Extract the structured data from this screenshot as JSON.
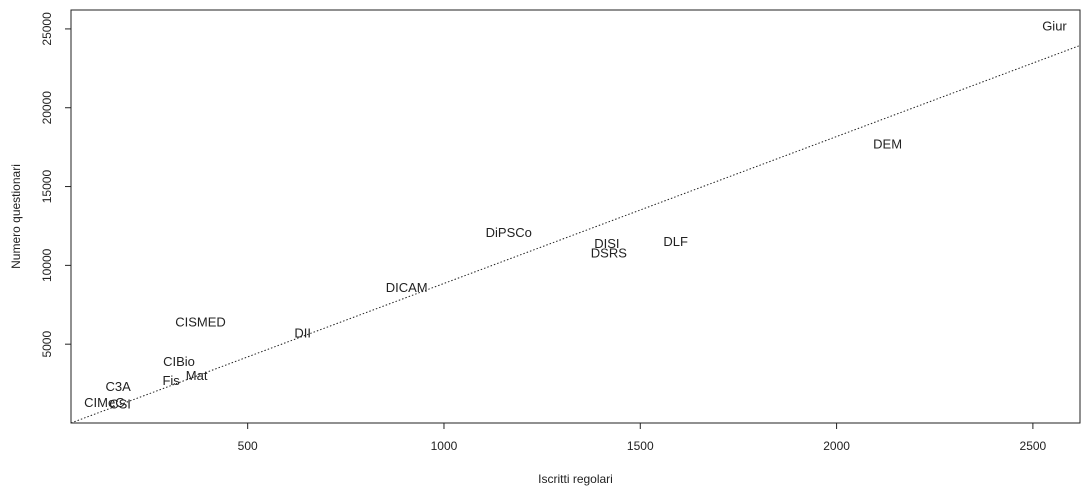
{
  "chart_data": {
    "type": "scatter",
    "xlabel": "Iscritti regolari",
    "ylabel": "Numero questionari",
    "xlim": [
      50,
      2620
    ],
    "ylim": [
      0,
      26200
    ],
    "xticks": [
      500,
      1000,
      1500,
      2000,
      2500
    ],
    "yticks": [
      5000,
      10000,
      15000,
      20000,
      25000
    ],
    "grid": false,
    "points": [
      {
        "label": "Giur",
        "x": 2555,
        "y": 25200
      },
      {
        "label": "DEM",
        "x": 2130,
        "y": 17700
      },
      {
        "label": "DiPSCo",
        "x": 1165,
        "y": 12100
      },
      {
        "label": "DISI",
        "x": 1415,
        "y": 11400
      },
      {
        "label": "DLF",
        "x": 1590,
        "y": 11500
      },
      {
        "label": "DSRS",
        "x": 1420,
        "y": 10800
      },
      {
        "label": "DICAM",
        "x": 905,
        "y": 8600
      },
      {
        "label": "CISMED",
        "x": 380,
        "y": 6400
      },
      {
        "label": "DII",
        "x": 640,
        "y": 5700
      },
      {
        "label": "CIBio",
        "x": 325,
        "y": 3900
      },
      {
        "label": "Mat",
        "x": 370,
        "y": 3000
      },
      {
        "label": "Fis",
        "x": 305,
        "y": 2700
      },
      {
        "label": "C3A",
        "x": 170,
        "y": 2300
      },
      {
        "label": "CIMeC",
        "x": 135,
        "y": 1300
      },
      {
        "label": "CSI",
        "x": 175,
        "y": 1200
      }
    ],
    "reference_line": {
      "style": "dotted",
      "x": [
        50,
        2620
      ],
      "y": [
        0,
        23950
      ]
    }
  }
}
